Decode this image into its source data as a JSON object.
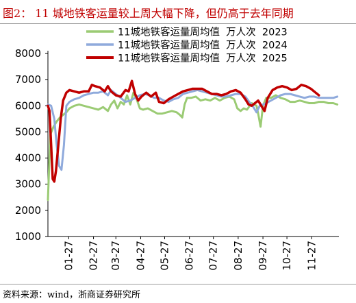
{
  "title": "图2：  11 城地铁客运量较上周大幅下降，但仍高于去年同期",
  "source": "资料来源：wind，浙商证券研究所",
  "chart_data": {
    "type": "line",
    "title": "",
    "xlabel": "",
    "ylabel": "",
    "ylim": [
      1000,
      8000
    ],
    "yticks": [
      1000,
      2000,
      3000,
      4000,
      5000,
      6000,
      7000,
      8000
    ],
    "xlim": [
      1,
      365
    ],
    "x_tick_labels": [
      "01-27",
      "02-27",
      "03-27",
      "04-27",
      "05-27",
      "06-27",
      "07-27",
      "08-27",
      "09-27",
      "10-27",
      "11-27"
    ],
    "x_tick_days": [
      27,
      58,
      86,
      117,
      147,
      178,
      208,
      239,
      270,
      300,
      331
    ],
    "x_unit": "day of year",
    "grid": false,
    "legend_position": "top",
    "series": [
      {
        "name": "11城地铁客运量周均值  万人次  2023",
        "color": "#9BCB74",
        "stroke_width": 3,
        "points": [
          [
            1,
            2400
          ],
          [
            4,
            4900
          ],
          [
            8,
            5200
          ],
          [
            12,
            5400
          ],
          [
            16,
            5550
          ],
          [
            20,
            5650
          ],
          [
            24,
            5750
          ],
          [
            28,
            5900
          ],
          [
            34,
            6000
          ],
          [
            40,
            6050
          ],
          [
            46,
            6000
          ],
          [
            52,
            5950
          ],
          [
            58,
            5900
          ],
          [
            64,
            5850
          ],
          [
            70,
            5950
          ],
          [
            76,
            5800
          ],
          [
            80,
            6050
          ],
          [
            84,
            6200
          ],
          [
            88,
            5900
          ],
          [
            92,
            6150
          ],
          [
            96,
            6050
          ],
          [
            100,
            6400
          ],
          [
            104,
            6050
          ],
          [
            108,
            6500
          ],
          [
            112,
            6250
          ],
          [
            116,
            5900
          ],
          [
            120,
            5850
          ],
          [
            126,
            5900
          ],
          [
            132,
            5800
          ],
          [
            138,
            5700
          ],
          [
            144,
            5700
          ],
          [
            150,
            5750
          ],
          [
            156,
            5800
          ],
          [
            162,
            5750
          ],
          [
            166,
            5650
          ],
          [
            169,
            5550
          ],
          [
            172,
            6050
          ],
          [
            175,
            6300
          ],
          [
            180,
            6300
          ],
          [
            186,
            6350
          ],
          [
            192,
            6200
          ],
          [
            198,
            6250
          ],
          [
            204,
            6200
          ],
          [
            210,
            6300
          ],
          [
            216,
            6200
          ],
          [
            222,
            6300
          ],
          [
            228,
            6350
          ],
          [
            234,
            6250
          ],
          [
            238,
            5900
          ],
          [
            242,
            5800
          ],
          [
            246,
            5900
          ],
          [
            250,
            5850
          ],
          [
            256,
            6100
          ],
          [
            262,
            6000
          ],
          [
            264,
            5700
          ],
          [
            267,
            5200
          ],
          [
            270,
            6000
          ],
          [
            274,
            6300
          ],
          [
            280,
            6300
          ],
          [
            286,
            6400
          ],
          [
            292,
            6300
          ],
          [
            298,
            6250
          ],
          [
            304,
            6150
          ],
          [
            310,
            6150
          ],
          [
            316,
            6200
          ],
          [
            322,
            6150
          ],
          [
            328,
            6100
          ],
          [
            334,
            6100
          ],
          [
            340,
            6150
          ],
          [
            346,
            6150
          ],
          [
            352,
            6100
          ],
          [
            358,
            6100
          ],
          [
            363,
            6050
          ]
        ]
      },
      {
        "name": "11城地铁客运量周均值  万人次  2024",
        "color": "#8FAADC",
        "stroke_width": 3,
        "points": [
          [
            1,
            6050
          ],
          [
            5,
            6000
          ],
          [
            9,
            5500
          ],
          [
            12,
            4500
          ],
          [
            15,
            3700
          ],
          [
            18,
            3550
          ],
          [
            21,
            4500
          ],
          [
            24,
            6000
          ],
          [
            28,
            6150
          ],
          [
            34,
            6250
          ],
          [
            40,
            6300
          ],
          [
            46,
            6400
          ],
          [
            52,
            6450
          ],
          [
            58,
            6500
          ],
          [
            64,
            6500
          ],
          [
            70,
            6550
          ],
          [
            76,
            6400
          ],
          [
            80,
            6600
          ],
          [
            86,
            6450
          ],
          [
            92,
            6300
          ],
          [
            98,
            6150
          ],
          [
            104,
            6200
          ],
          [
            110,
            6300
          ],
          [
            116,
            6400
          ],
          [
            122,
            6450
          ],
          [
            128,
            6400
          ],
          [
            134,
            6300
          ],
          [
            140,
            6300
          ],
          [
            146,
            6200
          ],
          [
            152,
            6150
          ],
          [
            158,
            6250
          ],
          [
            164,
            6300
          ],
          [
            170,
            6450
          ],
          [
            176,
            6500
          ],
          [
            182,
            6550
          ],
          [
            188,
            6600
          ],
          [
            194,
            6550
          ],
          [
            200,
            6500
          ],
          [
            206,
            6450
          ],
          [
            212,
            6400
          ],
          [
            218,
            6350
          ],
          [
            224,
            6350
          ],
          [
            230,
            6400
          ],
          [
            236,
            6450
          ],
          [
            242,
            6450
          ],
          [
            248,
            6350
          ],
          [
            254,
            6100
          ],
          [
            258,
            5950
          ],
          [
            262,
            5750
          ],
          [
            266,
            6000
          ],
          [
            270,
            6050
          ],
          [
            274,
            6100
          ],
          [
            280,
            6200
          ],
          [
            286,
            6300
          ],
          [
            292,
            6400
          ],
          [
            298,
            6450
          ],
          [
            304,
            6450
          ],
          [
            310,
            6400
          ],
          [
            316,
            6350
          ],
          [
            322,
            6300
          ],
          [
            328,
            6350
          ],
          [
            334,
            6350
          ],
          [
            340,
            6300
          ],
          [
            346,
            6300
          ],
          [
            352,
            6300
          ],
          [
            358,
            6300
          ],
          [
            363,
            6350
          ]
        ]
      },
      {
        "name": "11城地铁客运量周均值  万人次  2025",
        "color": "#C00000",
        "stroke_width": 3.5,
        "points": [
          [
            1,
            6000
          ],
          [
            3,
            5800
          ],
          [
            5,
            4500
          ],
          [
            7,
            3200
          ],
          [
            9,
            3100
          ],
          [
            11,
            3500
          ],
          [
            14,
            4500
          ],
          [
            17,
            5500
          ],
          [
            20,
            6200
          ],
          [
            24,
            6500
          ],
          [
            28,
            6600
          ],
          [
            34,
            6550
          ],
          [
            40,
            6500
          ],
          [
            46,
            6550
          ],
          [
            52,
            6550
          ],
          [
            56,
            6800
          ],
          [
            60,
            6750
          ],
          [
            66,
            6700
          ],
          [
            72,
            6550
          ],
          [
            76,
            6750
          ],
          [
            80,
            6550
          ],
          [
            86,
            6400
          ],
          [
            92,
            6350
          ],
          [
            98,
            6600
          ],
          [
            102,
            6550
          ],
          [
            106,
            6950
          ],
          [
            110,
            6450
          ],
          [
            114,
            6200
          ],
          [
            118,
            6350
          ],
          [
            124,
            6500
          ],
          [
            130,
            6350
          ],
          [
            136,
            6500
          ],
          [
            140,
            6150
          ],
          [
            146,
            6100
          ],
          [
            152,
            6250
          ],
          [
            158,
            6350
          ],
          [
            164,
            6450
          ],
          [
            170,
            6550
          ],
          [
            176,
            6600
          ],
          [
            182,
            6650
          ],
          [
            188,
            6650
          ],
          [
            194,
            6650
          ],
          [
            200,
            6550
          ],
          [
            206,
            6450
          ],
          [
            212,
            6450
          ],
          [
            218,
            6400
          ],
          [
            224,
            6450
          ],
          [
            230,
            6550
          ],
          [
            236,
            6600
          ],
          [
            242,
            6500
          ],
          [
            248,
            6250
          ],
          [
            252,
            6050
          ],
          [
            256,
            6000
          ],
          [
            260,
            6100
          ],
          [
            264,
            6200
          ],
          [
            268,
            6000
          ],
          [
            272,
            5800
          ],
          [
            276,
            6300
          ],
          [
            282,
            6600
          ],
          [
            288,
            6700
          ],
          [
            294,
            6750
          ],
          [
            300,
            6700
          ],
          [
            306,
            6600
          ],
          [
            312,
            6650
          ],
          [
            318,
            6800
          ],
          [
            324,
            6750
          ],
          [
            330,
            6650
          ],
          [
            336,
            6500
          ],
          [
            340,
            6400
          ]
        ]
      }
    ]
  }
}
